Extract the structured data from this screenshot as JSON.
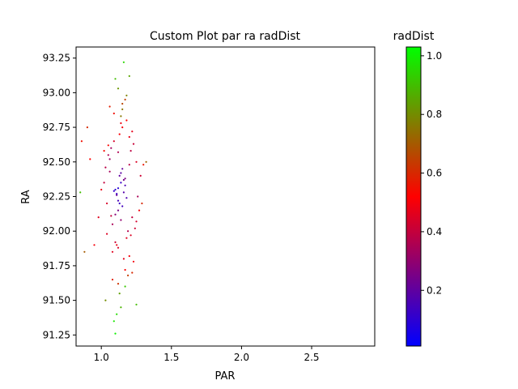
{
  "chart_data": {
    "type": "scatter",
    "title": "Custom Plot par ra radDist",
    "xlabel": "PAR",
    "ylabel": "RA",
    "xlim": [
      0.82,
      2.95
    ],
    "ylim": [
      91.17,
      93.33
    ],
    "xticks": [
      1.0,
      1.5,
      2.0,
      2.5
    ],
    "xtick_labels": [
      "1.0",
      "1.5",
      "2.0",
      "2.5"
    ],
    "yticks": [
      91.25,
      91.5,
      91.75,
      92.0,
      92.25,
      92.5,
      92.75,
      93.0,
      93.25
    ],
    "ytick_labels": [
      "91.25",
      "91.50",
      "91.75",
      "92.00",
      "92.25",
      "92.50",
      "92.75",
      "93.00",
      "93.25"
    ],
    "grid": false,
    "colorbar": {
      "label": "radDist",
      "range": [
        0.01,
        1.03
      ],
      "ticks": [
        0.2,
        0.4,
        0.6,
        0.8,
        1.0
      ],
      "tick_labels": [
        "0.2",
        "0.4",
        "0.6",
        "0.8",
        "1.0"
      ],
      "colors": [
        "#0000ff",
        "#ff0000",
        "#00ff00"
      ]
    },
    "points": {
      "x": [
        1.1,
        1.12,
        1.14,
        1.16,
        1.13,
        1.15,
        1.11,
        1.17,
        1.12,
        1.14,
        1.13,
        1.16,
        1.09,
        1.18,
        1.1,
        1.15,
        1.12,
        1.14,
        1.17,
        1.11,
        1.06,
        1.08,
        1.2,
        1.22,
        1.05,
        1.24,
        1.07,
        1.19,
        1.21,
        1.04,
        1.23,
        1.06,
        1.25,
        1.09,
        1.18,
        1.03,
        1.26,
        1.2,
        1.07,
        1.22,
        1.1,
        1.15,
        1.12,
        1.18,
        1.08,
        1.14,
        1.2,
        1.05,
        1.25,
        1.11,
        1.13,
        1.16,
        1.09,
        1.23,
        1.02,
        1.28,
        1.17,
        1.06,
        1.21,
        1.12,
        0.86,
        0.9,
        0.95,
        1.0,
        1.04,
        1.12,
        1.08,
        1.17,
        1.22,
        0.92,
        0.98,
        1.15,
        0.88,
        1.02,
        1.19,
        1.3,
        1.27,
        0.85,
        1.32,
        1.29,
        1.1,
        1.14,
        1.2,
        1.16,
        1.03,
        1.12,
        1.25,
        1.09,
        1.18,
        1.13,
        1.11,
        1.15,
        1.17,
        1.14,
        1.1
      ],
      "y": [
        92.3,
        92.22,
        92.35,
        92.28,
        92.4,
        92.18,
        92.26,
        92.33,
        92.15,
        92.42,
        92.2,
        92.37,
        92.29,
        92.24,
        92.12,
        92.45,
        92.31,
        92.08,
        92.38,
        92.27,
        92.52,
        92.05,
        92.48,
        92.1,
        92.55,
        92.02,
        92.6,
        92.0,
        92.58,
        91.98,
        92.63,
        92.43,
        92.07,
        92.65,
        91.95,
        92.46,
        92.25,
        92.68,
        92.11,
        92.72,
        91.92,
        92.75,
        91.88,
        92.8,
        91.85,
        92.78,
        91.82,
        92.62,
        92.5,
        91.9,
        92.7,
        91.8,
        92.85,
        91.78,
        92.35,
        92.4,
        91.72,
        92.9,
        91.97,
        92.57,
        92.65,
        92.75,
        91.9,
        92.3,
        92.2,
        91.62,
        91.65,
        92.95,
        91.7,
        92.52,
        92.1,
        92.92,
        91.85,
        92.58,
        91.68,
        92.48,
        92.15,
        92.28,
        92.5,
        92.2,
        93.1,
        91.45,
        93.12,
        93.22,
        91.5,
        93.03,
        91.47,
        91.35,
        92.98,
        91.55,
        91.4,
        92.88,
        91.6,
        92.83,
        91.26
      ],
      "c": [
        0.1,
        0.15,
        0.12,
        0.18,
        0.2,
        0.14,
        0.22,
        0.16,
        0.25,
        0.19,
        0.13,
        0.24,
        0.11,
        0.17,
        0.28,
        0.21,
        0.09,
        0.3,
        0.26,
        0.14,
        0.32,
        0.35,
        0.38,
        0.4,
        0.36,
        0.42,
        0.33,
        0.37,
        0.39,
        0.45,
        0.41,
        0.34,
        0.43,
        0.44,
        0.46,
        0.38,
        0.35,
        0.48,
        0.4,
        0.47,
        0.42,
        0.5,
        0.44,
        0.52,
        0.46,
        0.49,
        0.5,
        0.53,
        0.45,
        0.48,
        0.51,
        0.47,
        0.55,
        0.5,
        0.4,
        0.42,
        0.52,
        0.58,
        0.45,
        0.36,
        0.55,
        0.6,
        0.5,
        0.48,
        0.44,
        0.62,
        0.58,
        0.65,
        0.6,
        0.52,
        0.46,
        0.66,
        0.7,
        0.54,
        0.64,
        0.56,
        0.5,
        0.9,
        0.72,
        0.6,
        0.9,
        0.88,
        0.85,
        0.95,
        0.8,
        0.82,
        0.9,
        0.98,
        0.78,
        0.84,
        0.96,
        0.75,
        0.92,
        0.76,
        1.0
      ]
    }
  }
}
